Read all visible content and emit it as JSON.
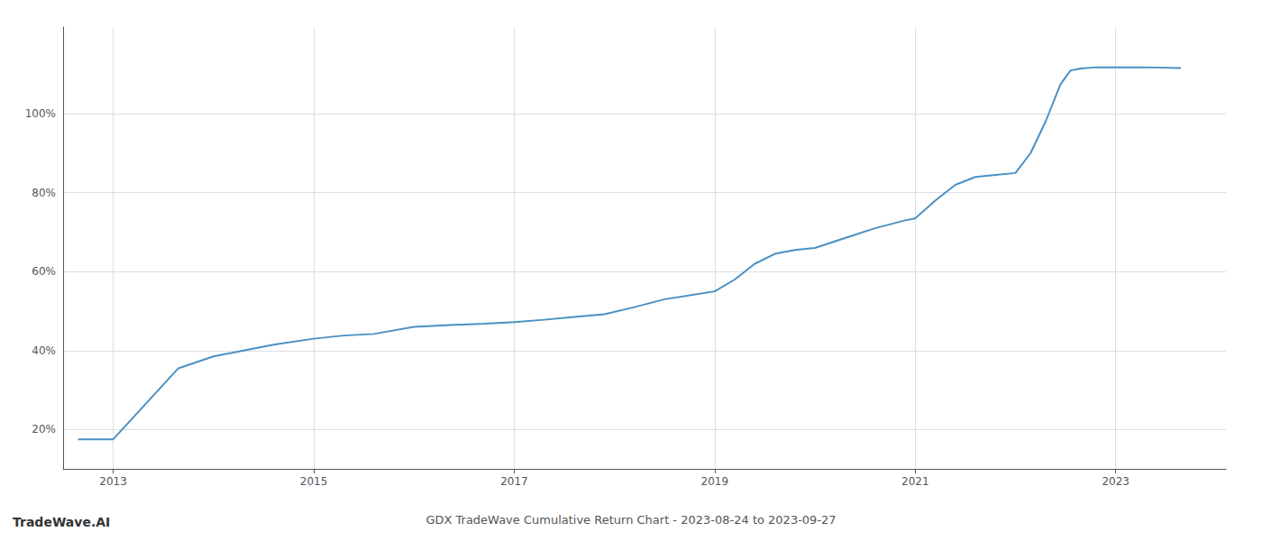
{
  "chart_data": {
    "type": "line",
    "title": "GDX TradeWave Cumulative Return Chart - 2023-08-24 to 2023-09-27",
    "annotations": [
      "TradeWave.AI"
    ],
    "color": "#4a90c4",
    "x": [
      2012.65,
      2013.0,
      2013.65,
      2014.0,
      2014.3,
      2014.6,
      2015.0,
      2015.3,
      2015.6,
      2016.0,
      2016.4,
      2016.7,
      2017.0,
      2017.3,
      2017.6,
      2017.9,
      2018.2,
      2018.5,
      2018.75,
      2019.0,
      2019.2,
      2019.4,
      2019.6,
      2019.8,
      2020.0,
      2020.3,
      2020.6,
      2020.9,
      2021.0,
      2021.2,
      2021.4,
      2021.6,
      2021.8,
      2022.0,
      2022.15,
      2022.3,
      2022.45,
      2022.55,
      2022.65,
      2022.8,
      2023.0,
      2023.3,
      2023.65
    ],
    "values": [
      0.175,
      0.175,
      0.355,
      0.385,
      0.4,
      0.415,
      0.43,
      0.438,
      0.442,
      0.46,
      0.465,
      0.468,
      0.472,
      0.478,
      0.485,
      0.492,
      0.51,
      0.53,
      0.54,
      0.55,
      0.58,
      0.62,
      0.645,
      0.655,
      0.66,
      0.685,
      0.71,
      0.73,
      0.735,
      0.78,
      0.82,
      0.84,
      0.845,
      0.85,
      0.9,
      0.98,
      1.075,
      1.11,
      1.115,
      1.118,
      1.118,
      1.118,
      1.116
    ],
    "xlim": [
      2012.5,
      2024.1
    ],
    "xticks": [
      2013,
      2015,
      2017,
      2019,
      2021,
      2023
    ],
    "ylim": [
      0.1,
      1.22
    ],
    "yticks": [
      {
        "value": 0.2,
        "label": "20%"
      },
      {
        "value": 0.4,
        "label": "40%"
      },
      {
        "value": 0.6,
        "label": "60%"
      },
      {
        "value": 0.8,
        "label": "80%"
      },
      {
        "value": 1.0,
        "label": "100%"
      }
    ],
    "grid": true
  }
}
